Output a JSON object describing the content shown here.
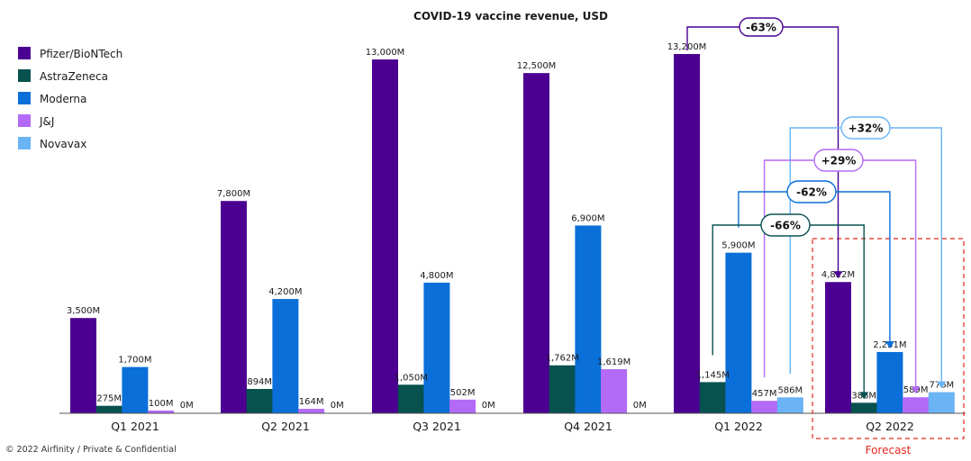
{
  "chart_data": {
    "type": "bar",
    "title": "COVID-19 vaccine revenue, USD",
    "categories": [
      "Q1 2021",
      "Q2 2021",
      "Q3 2021",
      "Q4 2021",
      "Q1 2022",
      "Q2 2022"
    ],
    "series": [
      {
        "name": "Pfizer/BioNTech",
        "color": "#4b0092",
        "values": [
          3500,
          7800,
          13000,
          12500,
          13200,
          4822
        ],
        "labels": [
          "3,500M",
          "7,800M",
          "13,000M",
          "12,500M",
          "13,200M",
          "4,822M"
        ]
      },
      {
        "name": "AstraZeneca",
        "color": "#07514f",
        "values": [
          275,
          894,
          1050,
          1762,
          1145,
          386
        ],
        "labels": [
          "275M",
          "894M",
          "1,050M",
          "1,762M",
          "1,145M",
          "386M"
        ]
      },
      {
        "name": "Moderna",
        "color": "#0a6fd8",
        "values": [
          1700,
          4200,
          4800,
          6900,
          5900,
          2251
        ],
        "labels": [
          "1,700M",
          "4,200M",
          "4,800M",
          "6,900M",
          "5,900M",
          "2,251M"
        ]
      },
      {
        "name": "J&J",
        "color": "#b36af7",
        "values": [
          100,
          164,
          502,
          1619,
          457,
          589
        ],
        "labels": [
          "100M",
          "164M",
          "502M",
          "1,619M",
          "457M",
          "589M"
        ]
      },
      {
        "name": "Novavax",
        "color": "#6ab4f5",
        "values": [
          0,
          0,
          0,
          0,
          586,
          776
        ],
        "labels": [
          "0M",
          "0M",
          "0M",
          "0M",
          "586M",
          "776M"
        ]
      }
    ],
    "ylim": [
      0,
      13500
    ],
    "unit": "M USD",
    "grid": false,
    "legend_position": "top-left",
    "changes": [
      {
        "series": "Pfizer/BioNTech",
        "from": "Q1 2022",
        "to": "Q2 2022",
        "label": "-63%"
      },
      {
        "series": "Novavax",
        "from": "Q1 2022",
        "to": "Q2 2022",
        "label": "+32%"
      },
      {
        "series": "J&J",
        "from": "Q1 2022",
        "to": "Q2 2022",
        "label": "+29%"
      },
      {
        "series": "Moderna",
        "from": "Q1 2022",
        "to": "Q2 2022",
        "label": "-62%"
      },
      {
        "series": "AstraZeneca",
        "from": "Q1 2022",
        "to": "Q2 2022",
        "label": "-66%"
      }
    ],
    "forecast_label": "Forecast",
    "forecast_category": "Q2 2022"
  },
  "footer": "© 2022 Airfinity / Private & Confidential"
}
